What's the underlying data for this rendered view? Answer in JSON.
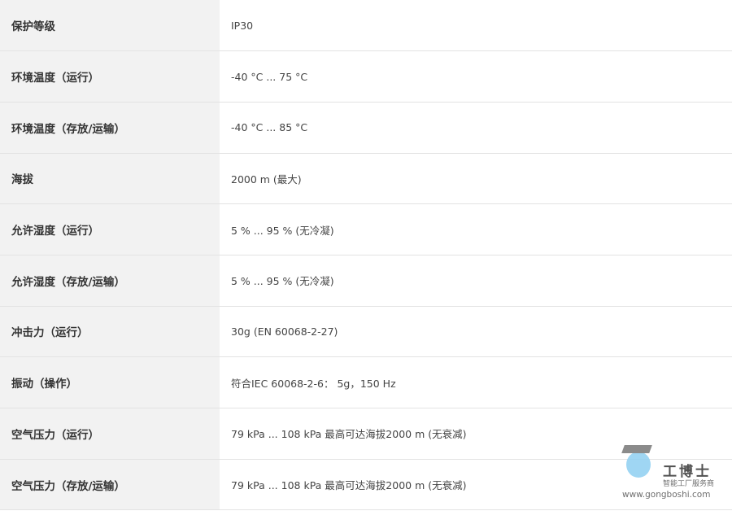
{
  "rows": [
    {
      "label": "保护等级",
      "value": "IP30"
    },
    {
      "label": "环境温度（运行）",
      "value": "-40 °C ... 75 °C"
    },
    {
      "label": "环境温度（存放/运输）",
      "value": "-40 °C ... 85 °C"
    },
    {
      "label": "海拔",
      "value": "2000 m (最大)"
    },
    {
      "label": "允许湿度（运行）",
      "value": "5 % ... 95 % (无冷凝)"
    },
    {
      "label": "允许湿度（存放/运输）",
      "value": "5 % ... 95 % (无冷凝)"
    },
    {
      "label": "冲击力（运行）",
      "value": "30g (EN 60068-2-27)"
    },
    {
      "label": "振动（操作）",
      "value": "符合IEC 60068-2-6： 5g，150 Hz"
    },
    {
      "label": "空气压力（运行）",
      "value": "79 kPa ... 108 kPa 最高可达海拔2000 m (无衰减)"
    },
    {
      "label": "空气压力（存放/运输）",
      "value": "79 kPa ... 108 kPa 最高可达海拔2000 m (无衰减)"
    }
  ],
  "watermark": {
    "name": "工博士",
    "tagline": "智能工厂服务商",
    "url": "www.gongboshi.com"
  }
}
